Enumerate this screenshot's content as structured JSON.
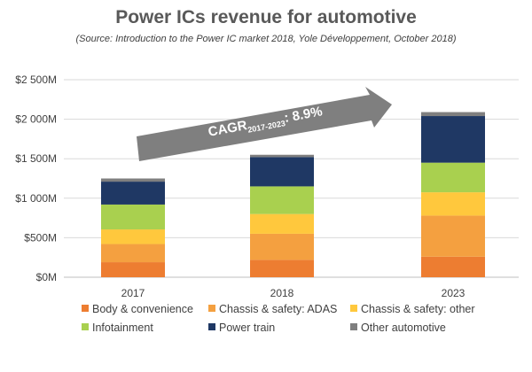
{
  "chart_data": {
    "type": "bar",
    "stacked": true,
    "title": "Power ICs revenue for automotive",
    "subtitle": "(Source: Introduction to the Power IC market 2018, Yole Développement, October 2018)",
    "categories": [
      "2017",
      "2018",
      "2023"
    ],
    "ylim": [
      0,
      2500
    ],
    "yticks": [
      {
        "value": 0,
        "label": "$0M"
      },
      {
        "value": 500,
        "label": "$500M"
      },
      {
        "value": 1000,
        "label": "$1 000M"
      },
      {
        "value": 1500,
        "label": "$1 500M"
      },
      {
        "value": 2000,
        "label": "$2 000M"
      },
      {
        "value": 2500,
        "label": "$2 500M"
      }
    ],
    "grid": true,
    "legend_position": "bottom",
    "series": [
      {
        "name": "Body & convenience",
        "color": "#ED7D31",
        "values": [
          190,
          220,
          260
        ]
      },
      {
        "name": "Chassis & safety: ADAS",
        "color": "#F4A040",
        "values": [
          230,
          330,
          520
        ]
      },
      {
        "name": "Chassis & safety: other",
        "color": "#FFC83D",
        "values": [
          185,
          250,
          295
        ]
      },
      {
        "name": "Infotainment",
        "color": "#A9D04F",
        "values": [
          315,
          350,
          375
        ]
      },
      {
        "name": "Power train",
        "color": "#1F3864",
        "values": [
          290,
          370,
          590
        ]
      },
      {
        "name": "Other automotive",
        "color": "#7F7F7F",
        "values": [
          40,
          30,
          50
        ]
      }
    ],
    "annotation": {
      "text": "CAGR",
      "subscript": "2017-2023",
      "value": ": 8.9%"
    }
  }
}
